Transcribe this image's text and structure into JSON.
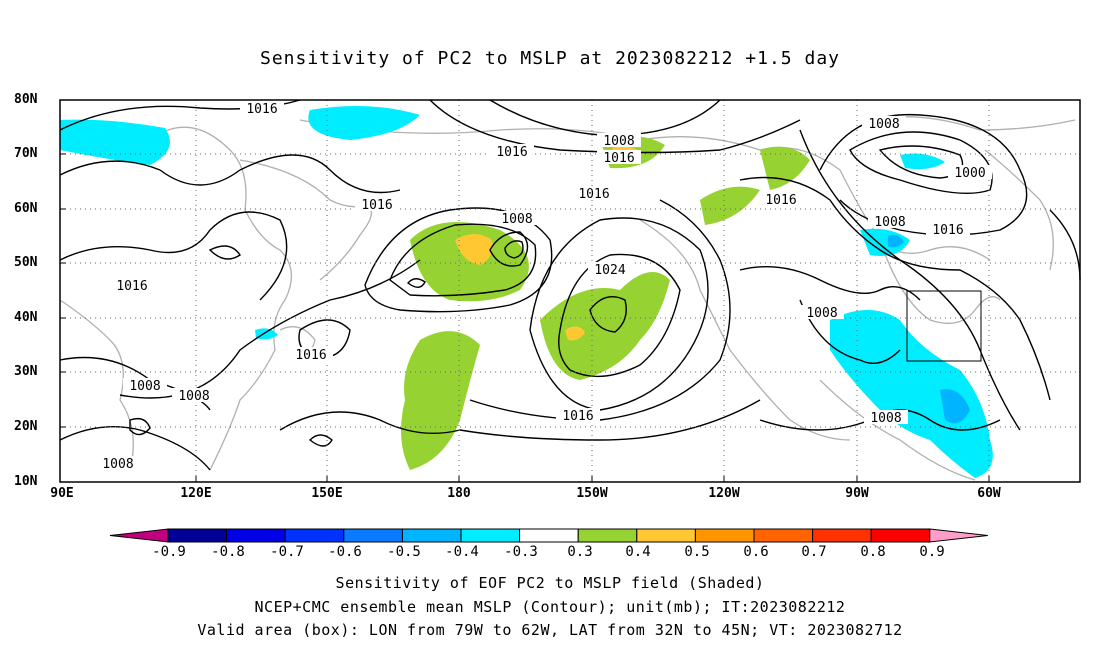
{
  "title": "Sensitivity of PC2 to MSLP at 2023082212 +1.5 day",
  "lat_labels": [
    "80N",
    "70N",
    "60N",
    "50N",
    "40N",
    "30N",
    "20N",
    "10N"
  ],
  "lon_labels": [
    "90E",
    "120E",
    "150E",
    "180",
    "150W",
    "120W",
    "90W",
    "60W"
  ],
  "colorbar": {
    "colors": [
      "#c0007f",
      "#000096",
      "#0000e6",
      "#0032ff",
      "#0a7aff",
      "#00b4ff",
      "#00ecff",
      "#ffffff",
      "#96d232",
      "#ffc832",
      "#ff9600",
      "#ff6400",
      "#ff3200",
      "#ff0000",
      "#ff9ec8"
    ],
    "labels": [
      "-0.9",
      "-0.8",
      "-0.7",
      "-0.6",
      "-0.5",
      "-0.4",
      "-0.3",
      "0.3",
      "0.4",
      "0.5",
      "0.6",
      "0.7",
      "0.8",
      "0.9"
    ]
  },
  "contour_labels": [
    "1016",
    "1008",
    "1016",
    "1016",
    "1008",
    "1016",
    "1016",
    "1008",
    "1000",
    "1016",
    "1008",
    "1016",
    "1024",
    "1016",
    "1008",
    "1016",
    "1008",
    "1008",
    "1008",
    "1016",
    "1008"
  ],
  "captions": {
    "line1": "Sensitivity of EOF PC2 to MSLP field (Shaded)",
    "line2": "NCEP+CMC ensemble mean MSLP (Contour); unit(mb); IT:2023082212",
    "line3": "Valid area (box): LON from 79W to 62W, LAT from 32N to 45N; VT: 2023082712"
  }
}
